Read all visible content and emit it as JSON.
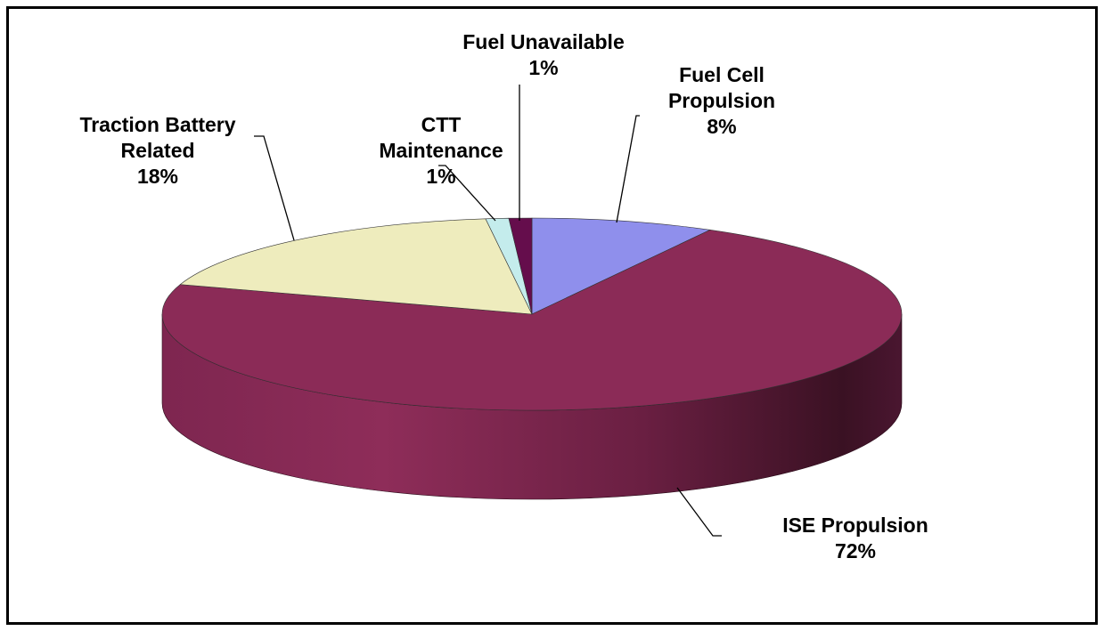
{
  "chart_data": {
    "type": "pie",
    "categories": [
      "Fuel Cell Propulsion",
      "ISE Propulsion",
      "Traction Battery Related",
      "CTT Maintenance",
      "Fuel Unavailable"
    ],
    "values": [
      8,
      72,
      18,
      1,
      1
    ],
    "value_labels": [
      "8%",
      "72%",
      "18%",
      "1%",
      "1%"
    ],
    "colors": [
      "#8f8fec",
      "#8b2b57",
      "#eeecbd",
      "#c4ecec",
      "#650d4c"
    ]
  }
}
